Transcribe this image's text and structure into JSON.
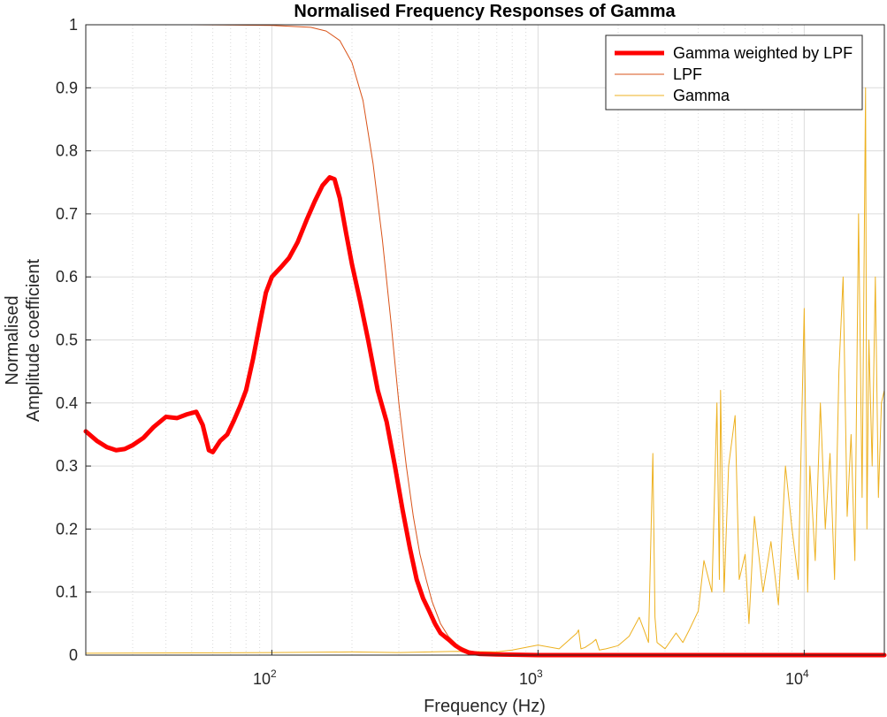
{
  "chart_data": {
    "type": "line",
    "title": "Normalised Frequency Responses of Gamma",
    "xlabel": "Frequency (Hz)",
    "ylabel_lines": [
      "Normalised",
      "Amplitude coefficient"
    ],
    "xscale": "log",
    "xlim": [
      20,
      20000
    ],
    "ylim": [
      0,
      1
    ],
    "x_ticks": [
      {
        "value": 100,
        "base": "10",
        "exp": "2"
      },
      {
        "value": 1000,
        "base": "10",
        "exp": "3"
      },
      {
        "value": 10000,
        "base": "10",
        "exp": "4"
      }
    ],
    "y_ticks": [
      "0",
      "0.1",
      "0.2",
      "0.3",
      "0.4",
      "0.5",
      "0.6",
      "0.7",
      "0.8",
      "0.9",
      "1"
    ],
    "grid": true,
    "legend_position": "top-right",
    "series": [
      {
        "name": "Gamma weighted by LPF",
        "color": "#ff0000",
        "line_style": "thick",
        "x": [
          20,
          22,
          24,
          26,
          28,
          30,
          33,
          36,
          40,
          44,
          48,
          52,
          55,
          58,
          60,
          64,
          68,
          72,
          76,
          80,
          85,
          90,
          95,
          100,
          108,
          116,
          125,
          135,
          145,
          155,
          165,
          172,
          180,
          190,
          200,
          215,
          230,
          250,
          270,
          290,
          310,
          330,
          350,
          370,
          390,
          410,
          430,
          460,
          490,
          520,
          550,
          600,
          700,
          1000,
          2000,
          5000,
          10000,
          20000
        ],
        "y": [
          0.355,
          0.34,
          0.33,
          0.325,
          0.327,
          0.333,
          0.345,
          0.362,
          0.378,
          0.376,
          0.382,
          0.386,
          0.365,
          0.325,
          0.322,
          0.34,
          0.35,
          0.372,
          0.395,
          0.42,
          0.47,
          0.525,
          0.575,
          0.6,
          0.615,
          0.63,
          0.655,
          0.69,
          0.72,
          0.745,
          0.758,
          0.755,
          0.725,
          0.67,
          0.62,
          0.56,
          0.5,
          0.42,
          0.37,
          0.3,
          0.23,
          0.17,
          0.12,
          0.09,
          0.07,
          0.05,
          0.035,
          0.025,
          0.015,
          0.008,
          0.004,
          0.002,
          0.001,
          0.0,
          0.0,
          0.0,
          0.0,
          0.0
        ]
      },
      {
        "name": "LPF",
        "color": "#d95319",
        "line_style": "thin",
        "x": [
          20,
          50,
          100,
          140,
          160,
          180,
          200,
          220,
          240,
          260,
          280,
          300,
          320,
          340,
          360,
          380,
          400,
          430,
          460,
          500,
          550,
          600,
          700,
          1000,
          20000
        ],
        "y": [
          1.0,
          1.0,
          0.999,
          0.996,
          0.99,
          0.975,
          0.94,
          0.88,
          0.78,
          0.66,
          0.53,
          0.4,
          0.3,
          0.22,
          0.16,
          0.12,
          0.085,
          0.05,
          0.03,
          0.015,
          0.007,
          0.003,
          0.001,
          0.0,
          0.0
        ]
      },
      {
        "name": "Gamma",
        "color": "#edb120",
        "line_style": "thin",
        "x": [
          20,
          100,
          200,
          300,
          500,
          700,
          800,
          1000,
          1200,
          1400,
          1420,
          1450,
          1500,
          1600,
          1650,
          1700,
          1800,
          2000,
          2200,
          2400,
          2500,
          2600,
          2700,
          2750,
          2800,
          2900,
          3000,
          3300,
          3500,
          3700,
          4000,
          4200,
          4500,
          4700,
          4800,
          4850,
          5000,
          5200,
          5500,
          5700,
          6000,
          6200,
          6500,
          7000,
          7500,
          8000,
          8500,
          9000,
          9500,
          10000,
          10300,
          10500,
          11000,
          11500,
          12000,
          12500,
          13000,
          13500,
          14000,
          14500,
          15000,
          15500,
          16000,
          16500,
          17000,
          17200,
          17500,
          18000,
          18500,
          19000,
          19500,
          20000
        ],
        "y": [
          0.003,
          0.004,
          0.005,
          0.004,
          0.006,
          0.005,
          0.008,
          0.016,
          0.01,
          0.035,
          0.04,
          0.01,
          0.012,
          0.02,
          0.025,
          0.008,
          0.01,
          0.015,
          0.03,
          0.06,
          0.04,
          0.02,
          0.32,
          0.06,
          0.02,
          0.015,
          0.01,
          0.035,
          0.02,
          0.04,
          0.07,
          0.15,
          0.1,
          0.4,
          0.12,
          0.42,
          0.1,
          0.3,
          0.38,
          0.12,
          0.16,
          0.05,
          0.22,
          0.1,
          0.18,
          0.08,
          0.3,
          0.2,
          0.12,
          0.55,
          0.1,
          0.3,
          0.15,
          0.4,
          0.2,
          0.32,
          0.12,
          0.45,
          0.6,
          0.22,
          0.35,
          0.15,
          0.7,
          0.25,
          0.9,
          0.2,
          0.5,
          0.3,
          0.6,
          0.25,
          0.4,
          0.42
        ]
      }
    ]
  }
}
